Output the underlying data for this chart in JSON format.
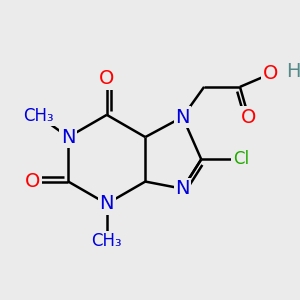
{
  "bg_color": "#ebebeb",
  "atom_colors": {
    "N": "#0000dd",
    "O": "#ff0000",
    "Cl": "#22aa00",
    "H": "#558888",
    "C": "#000000"
  },
  "bond_color": "#000000",
  "bond_width": 1.8,
  "font_size_atom": 14,
  "font_size_small": 12
}
